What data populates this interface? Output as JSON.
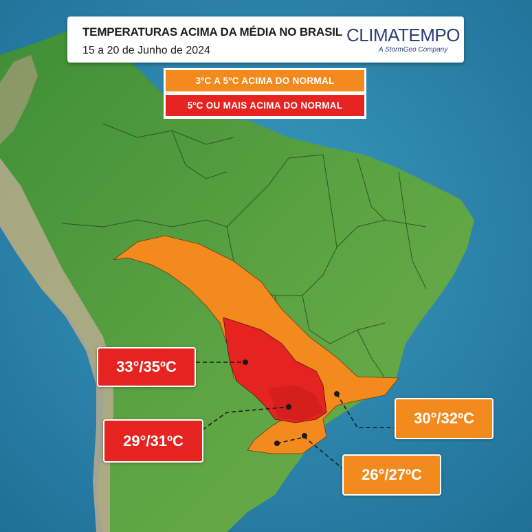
{
  "header": {
    "title": "TEMPERATURAS ACIMA DA MÉDIA NO BRASIL",
    "subtitle": "15 a 20 de Junho de 2024"
  },
  "brand": {
    "name": "CLIMATEMPO",
    "tagline": "A StormGeo Company",
    "color": "#2b3f79"
  },
  "legend": {
    "items": [
      {
        "label": "3ºC A 5ºC ACIMA DO NORMAL",
        "color": "#f28a1e"
      },
      {
        "label": "5ºC OU MAIS ACIMA DO NORMAL",
        "color": "#e52421"
      }
    ]
  },
  "labels": [
    {
      "text": "33°/35ºC",
      "color": "#e52421"
    },
    {
      "text": "29°/31ºC",
      "color": "#e52421"
    },
    {
      "text": "30°/32ºC",
      "color": "#f28a1e"
    },
    {
      "text": "26°/27ºC",
      "color": "#f28a1e"
    }
  ],
  "colors": {
    "ocean": "#2f86ad",
    "land_green": "#4e9a3e",
    "andes": "#b9ab8e",
    "anomaly_orange": "#f28a1e",
    "anomaly_red": "#e52421"
  }
}
